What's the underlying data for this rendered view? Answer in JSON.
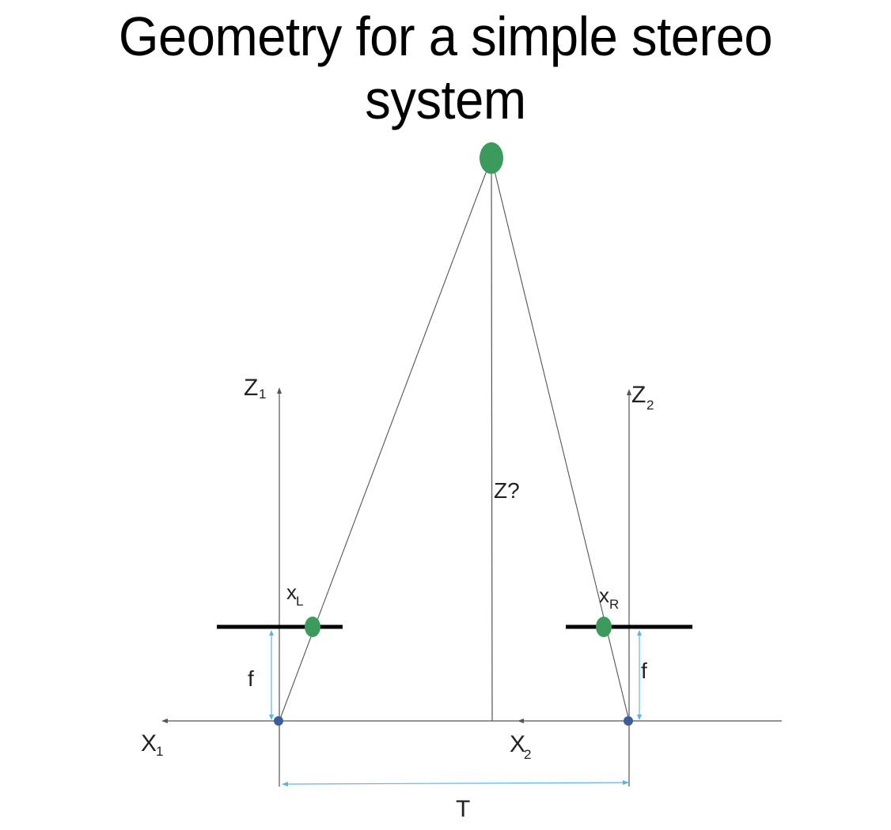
{
  "title": "Geometry for a simple stereo system",
  "labels": {
    "z1_main": "Z",
    "z1_sub": "1",
    "z2_main": "Z",
    "z2_sub": "2",
    "x1_main": "X",
    "x1_sub": "1",
    "x2_main": "X",
    "x2_sub": "2",
    "xl_main": "x",
    "xl_sub": "L",
    "xr_main": "x",
    "xr_sub": "R",
    "depth": "Z?",
    "focal_left": "f",
    "focal_right": "f",
    "baseline": "T"
  },
  "colors": {
    "point": "#3a9b5c",
    "center": "#3b5e9e",
    "dimension": "#5bb4e6",
    "line": "#555555",
    "image_plane": "#000000"
  }
}
